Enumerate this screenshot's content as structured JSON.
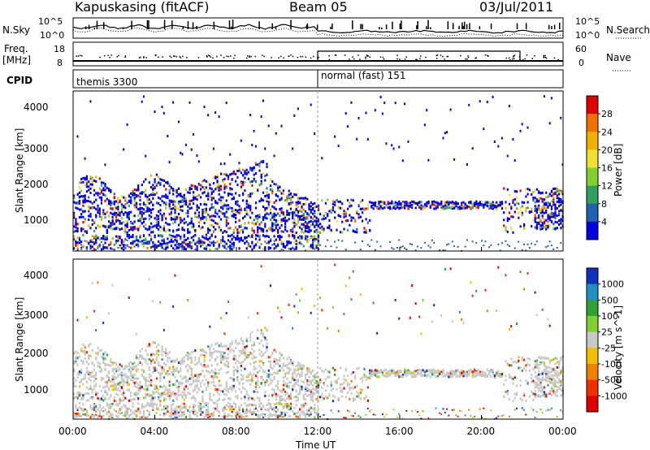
{
  "header": {
    "station": "Kapuskasing (fitACF)",
    "beam": "Beam 05",
    "date": "03/Jul/2011"
  },
  "noise_panel": {
    "left_label": "N.Sky",
    "right_label": "N.Search",
    "left_ticks": [
      "10^5",
      "10^0"
    ],
    "right_ticks": [
      "10^5",
      "10^0"
    ],
    "right_legend_line": "dotted"
  },
  "freq_panel": {
    "left_label_top": "Freq.",
    "left_label_bottom": "[MHz]",
    "left_ticks": [
      "18",
      "8"
    ],
    "right_label": "Nave",
    "right_ticks": [
      "60",
      "0"
    ],
    "right_legend_line": "dotted"
  },
  "cpid_panel": {
    "label": "CPID",
    "segments": [
      {
        "name": "themis 3300",
        "start_hour": 0,
        "end_hour": 12
      },
      {
        "name": "normal (fast) 151",
        "start_hour": 12,
        "end_hour": 24
      }
    ]
  },
  "chart_data": [
    {
      "type": "heatmap",
      "quantity": "Power",
      "colorbar_label": "Power [dB]",
      "colorbar_ticks": [
        "28",
        "24",
        "20",
        "16",
        "12",
        "8",
        "4"
      ],
      "colorbar_colors": [
        "#e00000",
        "#f07000",
        "#f0b000",
        "#f0e030",
        "#80d030",
        "#30a060",
        "#2060b0",
        "#0000e0"
      ],
      "ylabel": "Slant Range [km]",
      "yticks": [
        1000,
        2000,
        3000,
        4000
      ],
      "ylim": [
        180,
        4500
      ],
      "xlabel": "Time UT",
      "xticks": [
        "00:00",
        "04:00",
        "08:00",
        "12:00",
        "16:00",
        "20:00",
        "00:00"
      ],
      "xlim_hours": [
        0,
        24
      ]
    },
    {
      "type": "heatmap",
      "quantity": "Velocity",
      "colorbar_label": "Velocity [m s^-1]",
      "colorbar_ticks": [
        "1000",
        "500",
        "100",
        "25",
        "-25",
        "-100",
        "-500",
        "-1000"
      ],
      "colorbar_colors": [
        "#1030c0",
        "#2090c0",
        "#30a030",
        "#80d030",
        "#c8c8c8",
        "#f0c000",
        "#f08000",
        "#f03000",
        "#e00000"
      ],
      "ylabel": "Slant Range [km]",
      "yticks": [
        1000,
        2000,
        3000,
        4000
      ],
      "ylim": [
        180,
        4500
      ],
      "xlabel": "Time UT",
      "xticks": [
        "00:00",
        "04:00",
        "08:00",
        "12:00",
        "16:00",
        "20:00",
        "00:00"
      ],
      "xlim_hours": [
        0,
        24
      ]
    }
  ],
  "x_axis_title": "Time UT"
}
